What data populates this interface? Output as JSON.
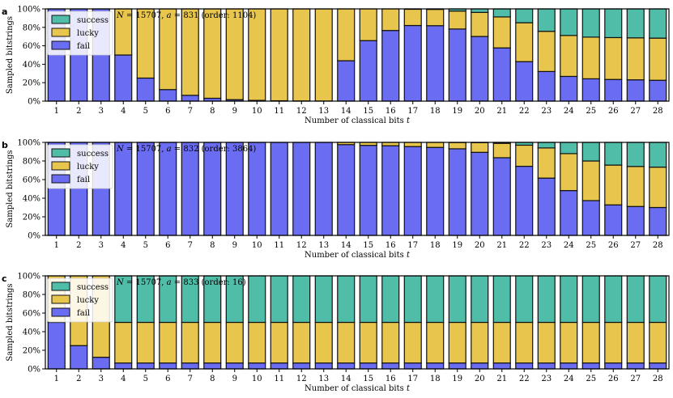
{
  "colors": {
    "fail": "#6a6cf2",
    "lucky": "#e8c64d",
    "success": "#4fbda8",
    "edge": "#111111"
  },
  "chart_data": [
    {
      "type": "bar",
      "stacked": true,
      "panel_label": "a",
      "annotation": {
        "n_label": "N",
        "n_value": "15707",
        "a_label": "a",
        "a_value": "831",
        "order_text": "(order: 1104)"
      },
      "categories": [
        "1",
        "2",
        "3",
        "4",
        "5",
        "6",
        "7",
        "8",
        "9",
        "10",
        "11",
        "12",
        "13",
        "14",
        "15",
        "16",
        "17",
        "18",
        "19",
        "20",
        "21",
        "22",
        "23",
        "24",
        "25",
        "26",
        "27",
        "28"
      ],
      "series": [
        {
          "name": "fail",
          "values": [
            100,
            100,
            100,
            50,
            25,
            12.5,
            6.3,
            3.1,
            1.6,
            0.8,
            0.4,
            0.2,
            0.1,
            43.8,
            65.6,
            76.6,
            82,
            81.8,
            78.2,
            70.1,
            57.7,
            42.8,
            32.1,
            26.8,
            24.2,
            23.5,
            23.1,
            22.6
          ]
        },
        {
          "name": "lucky",
          "values": [
            0,
            0,
            0,
            50,
            75,
            87.5,
            93.7,
            96.9,
            98.4,
            99.2,
            99.6,
            99.8,
            99.9,
            56.2,
            34.4,
            23.4,
            17.6,
            17.7,
            19.5,
            26.1,
            33.6,
            42.2,
            43.6,
            44.4,
            45.2,
            45.4,
            45.5,
            45.7
          ]
        },
        {
          "name": "success",
          "values": [
            0,
            0,
            0,
            0,
            0,
            0,
            0,
            0,
            0,
            0,
            0,
            0,
            0,
            0,
            0,
            0,
            0.4,
            0.5,
            2.3,
            3.8,
            8.7,
            15,
            24.3,
            28.8,
            30.6,
            31.1,
            31.4,
            31.7
          ]
        }
      ],
      "legend": [
        "success",
        "lucky",
        "fail"
      ],
      "legend_position": "top-left",
      "xlabel": "Number of classical bits t",
      "xlabel_main": "Number of classical bits",
      "xlabel_var": "t",
      "ylabel": "Sampled bitstrings",
      "ylim": [
        0,
        100
      ],
      "yticks": [
        "0%",
        "20%",
        "40%",
        "60%",
        "80%",
        "100%"
      ]
    },
    {
      "type": "bar",
      "stacked": true,
      "panel_label": "b",
      "annotation": {
        "n_label": "N",
        "n_value": "15707",
        "a_label": "a",
        "a_value": "832",
        "order_text": "(order: 3864)"
      },
      "categories": [
        "1",
        "2",
        "3",
        "4",
        "5",
        "6",
        "7",
        "8",
        "9",
        "10",
        "11",
        "12",
        "13",
        "14",
        "15",
        "16",
        "17",
        "18",
        "19",
        "20",
        "21",
        "22",
        "23",
        "24",
        "25",
        "26",
        "27",
        "28"
      ],
      "series": [
        {
          "name": "fail",
          "values": [
            100,
            100,
            100,
            100,
            100,
            100,
            100,
            100,
            100,
            100,
            100,
            100,
            100,
            97.6,
            96.8,
            96.4,
            95.5,
            94.6,
            93.1,
            89.3,
            83.5,
            74.3,
            61.6,
            48.2,
            37.4,
            32.8,
            31.1,
            30
          ]
        },
        {
          "name": "lucky",
          "values": [
            0,
            0,
            0,
            0,
            0,
            0,
            0,
            0,
            0,
            0,
            0,
            0,
            0,
            2.4,
            3.2,
            3.6,
            4.5,
            5.4,
            6.8,
            10.4,
            15.5,
            22.7,
            32.4,
            39.7,
            42.6,
            42.8,
            43,
            43.4
          ]
        },
        {
          "name": "success",
          "values": [
            0,
            0,
            0,
            0,
            0,
            0,
            0,
            0,
            0,
            0,
            0,
            0,
            0,
            0,
            0,
            0,
            0,
            0,
            0.1,
            0.3,
            1,
            3,
            6,
            12.1,
            20,
            24.4,
            25.9,
            26.6
          ]
        }
      ],
      "legend": [
        "success",
        "lucky",
        "fail"
      ],
      "legend_position": "top-left",
      "xlabel": "Number of classical bits t",
      "xlabel_main": "Number of classical bits",
      "xlabel_var": "t",
      "ylabel": "Sampled bitstrings",
      "ylim": [
        0,
        100
      ],
      "yticks": [
        "0%",
        "20%",
        "40%",
        "60%",
        "80%",
        "100%"
      ]
    },
    {
      "type": "bar",
      "stacked": true,
      "panel_label": "c",
      "annotation": {
        "n_label": "N",
        "n_value": "15707",
        "a_label": "a",
        "a_value": "833",
        "order_text": "(order: 16)"
      },
      "categories": [
        "1",
        "2",
        "3",
        "4",
        "5",
        "6",
        "7",
        "8",
        "9",
        "10",
        "11",
        "12",
        "13",
        "14",
        "15",
        "16",
        "17",
        "18",
        "19",
        "20",
        "21",
        "22",
        "23",
        "24",
        "25",
        "26",
        "27",
        "28"
      ],
      "series": [
        {
          "name": "fail",
          "values": [
            50,
            25,
            12.5,
            6.3,
            6.3,
            6.3,
            6.3,
            6.3,
            6.3,
            6.3,
            6.3,
            6.3,
            6.3,
            6.3,
            6.3,
            6.3,
            6.3,
            6.3,
            6.3,
            6.3,
            6.3,
            6.3,
            6.3,
            6.3,
            6.3,
            6.3,
            6.3,
            6.3
          ]
        },
        {
          "name": "lucky",
          "values": [
            50,
            75,
            87.5,
            43.7,
            43.7,
            43.7,
            43.7,
            43.7,
            43.7,
            43.7,
            43.7,
            43.7,
            43.7,
            43.7,
            43.7,
            43.7,
            43.7,
            43.7,
            43.7,
            43.7,
            43.7,
            43.7,
            43.7,
            43.7,
            43.7,
            43.7,
            43.7,
            43.7
          ]
        },
        {
          "name": "success",
          "values": [
            0,
            0,
            0,
            50,
            50,
            50,
            50,
            50,
            50,
            50,
            50,
            50,
            50,
            50,
            50,
            50,
            50,
            50,
            50,
            50,
            50,
            50,
            50,
            50,
            50,
            50,
            50,
            50
          ]
        }
      ],
      "legend": [
        "success",
        "lucky",
        "fail"
      ],
      "legend_position": "top-left",
      "xlabel": "Number of classical bits t",
      "xlabel_main": "Number of classical bits",
      "xlabel_var": "t",
      "ylabel": "Sampled bitstrings",
      "ylim": [
        0,
        100
      ],
      "yticks": [
        "0%",
        "20%",
        "40%",
        "60%",
        "80%",
        "100%"
      ]
    }
  ]
}
